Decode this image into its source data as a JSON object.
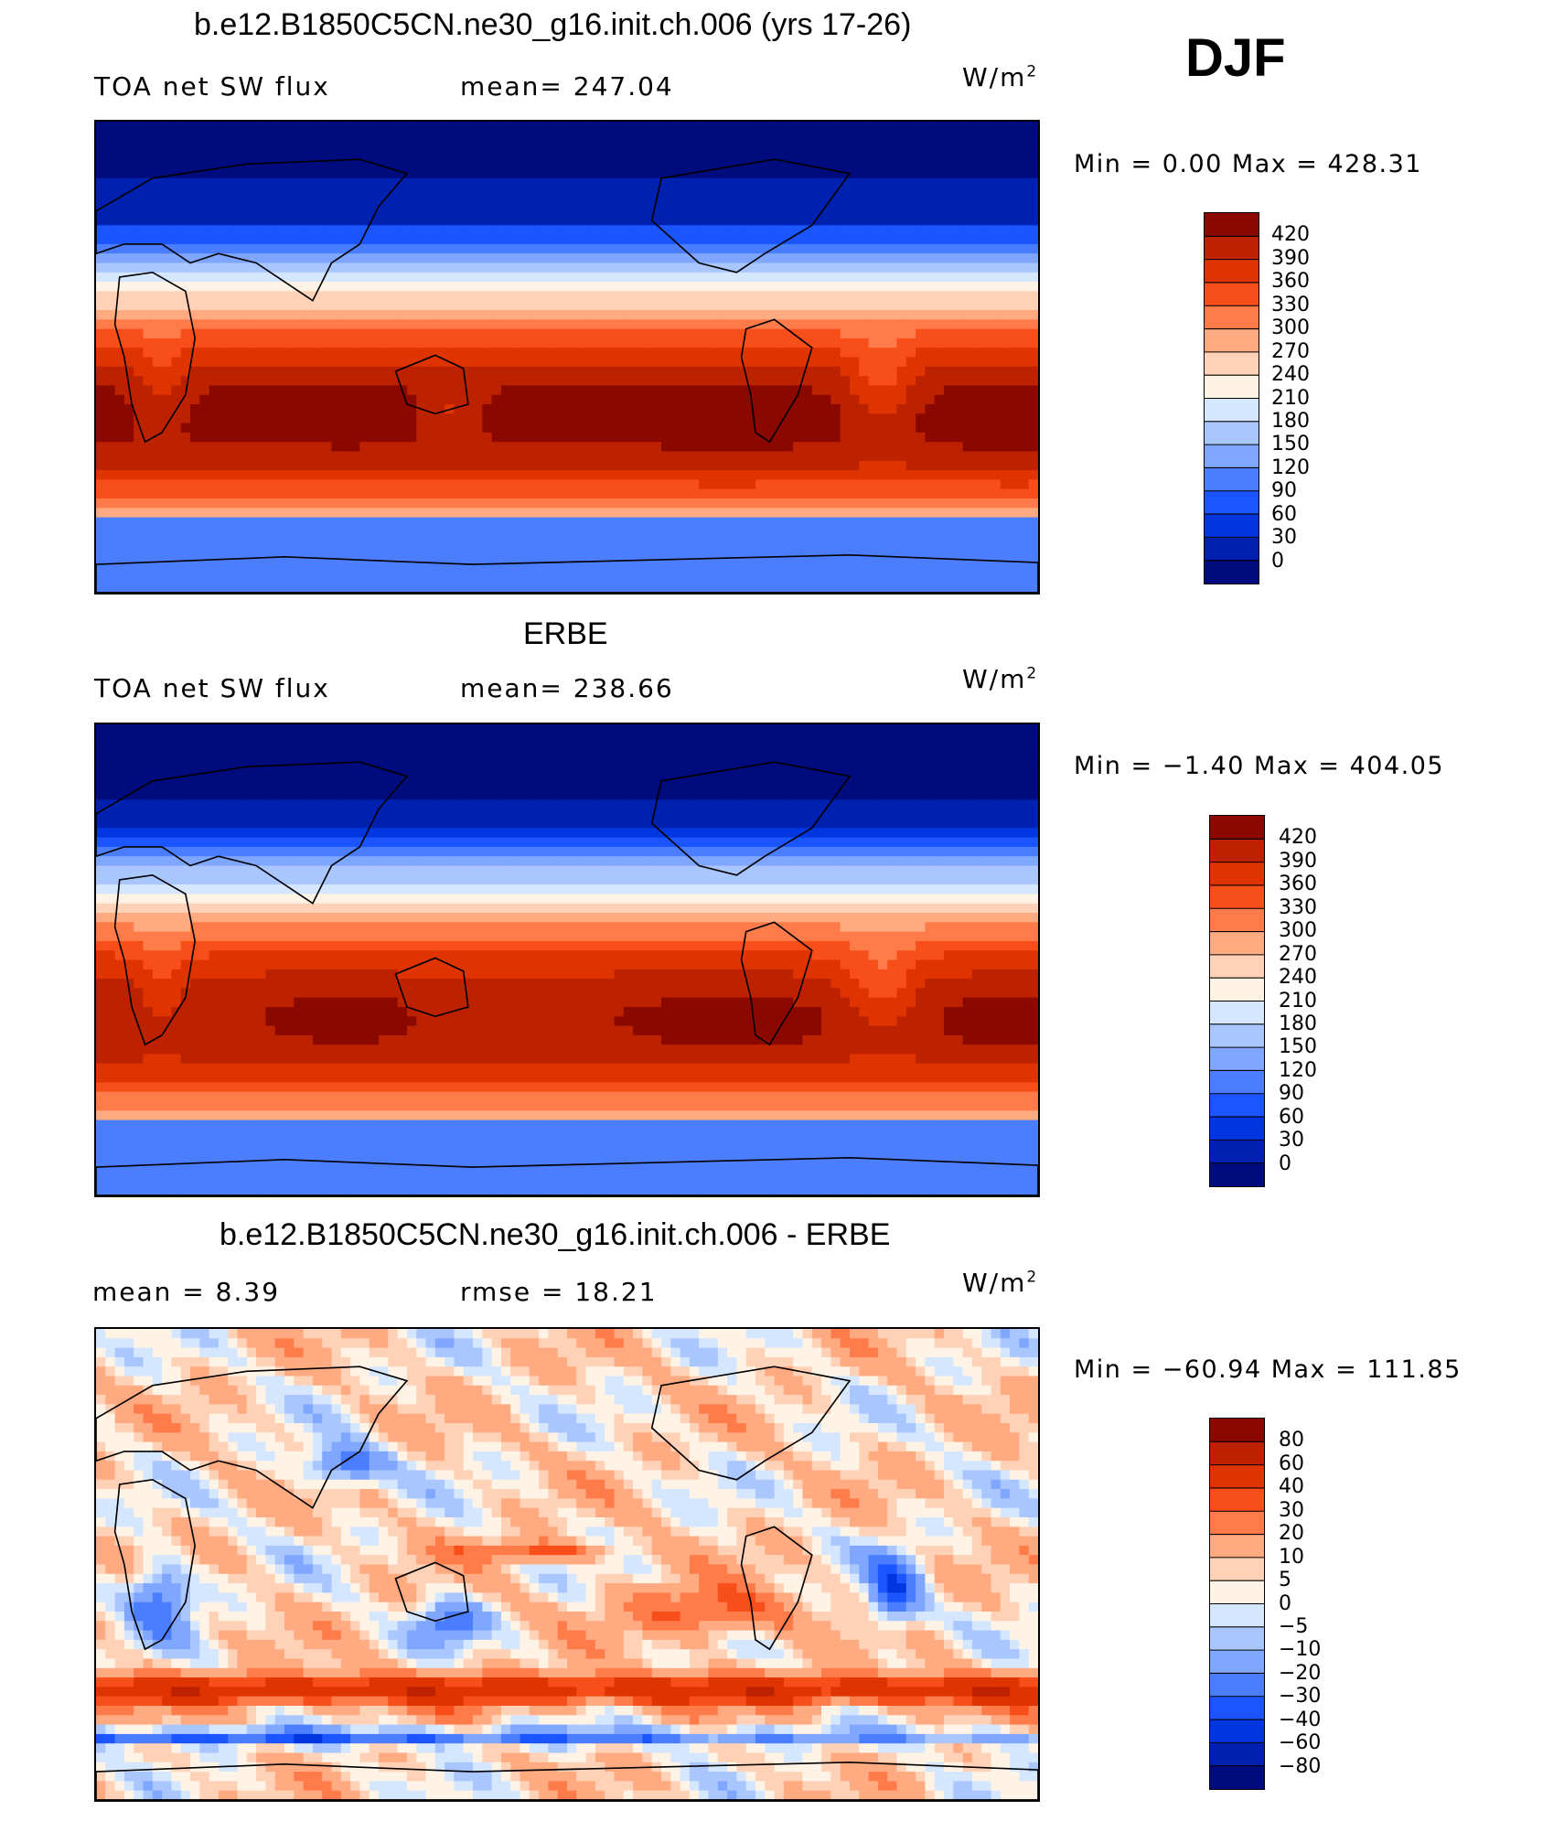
{
  "figure": {
    "season": "DJF"
  },
  "panels": [
    {
      "title": "b.e12.B1850C5CN.ne30_g16.init.ch.006 (yrs 17-26)",
      "left_label": "TOA net SW flux",
      "mid_label": "mean=  247.04",
      "units": "W/m",
      "units_exp": "2",
      "minmax": "Min  =    0.00  Max  =  428.31"
    },
    {
      "title": "ERBE",
      "left_label": "TOA net SW flux",
      "mid_label": "mean=  238.66",
      "units": "W/m",
      "units_exp": "2",
      "minmax": "Min  =  −1.40  Max  =  404.05"
    },
    {
      "title": "b.e12.B1850C5CN.ne30_g16.init.ch.006 - ERBE",
      "left_label": "mean  =    8.39",
      "mid_label": "rmse  =   18.21",
      "units": "W/m",
      "units_exp": "2",
      "minmax": "Min  = −60.94  Max  =  111.85"
    }
  ],
  "chart_data": [
    {
      "type": "heatmap",
      "title": "b.e12.B1850C5CN.ne30_g16.init.ch.006 (yrs 17-26)",
      "variable": "TOA net SW flux",
      "mean": 247.04,
      "min": 0.0,
      "max": 428.31,
      "units": "W/m2",
      "colorbar_levels": [
        0,
        30,
        60,
        90,
        120,
        150,
        180,
        210,
        240,
        270,
        300,
        330,
        360,
        390,
        420
      ],
      "colors": [
        "#000c7d",
        "#0020b0",
        "#0036e0",
        "#1a55ff",
        "#4a7dff",
        "#7fa7ff",
        "#aac6ff",
        "#d5e6ff",
        "#fff3e6",
        "#ffd2b8",
        "#ffaa80",
        "#ff7c4a",
        "#f84f1a",
        "#e03400",
        "#bd2200",
        "#8b0800"
      ]
    },
    {
      "type": "heatmap",
      "title": "ERBE",
      "variable": "TOA net SW flux",
      "mean": 238.66,
      "min": -1.4,
      "max": 404.05,
      "units": "W/m2",
      "colorbar_levels": [
        0,
        30,
        60,
        90,
        120,
        150,
        180,
        210,
        240,
        270,
        300,
        330,
        360,
        390,
        420
      ],
      "colors": [
        "#000c7d",
        "#0020b0",
        "#0036e0",
        "#1a55ff",
        "#4a7dff",
        "#7fa7ff",
        "#aac6ff",
        "#d5e6ff",
        "#fff3e6",
        "#ffd2b8",
        "#ffaa80",
        "#ff7c4a",
        "#f84f1a",
        "#e03400",
        "#bd2200",
        "#8b0800"
      ]
    },
    {
      "type": "heatmap",
      "title": "b.e12.B1850C5CN.ne30_g16.init.ch.006 - ERBE",
      "mean": 8.39,
      "rmse": 18.21,
      "min": -60.94,
      "max": 111.85,
      "units": "W/m2",
      "colorbar_levels": [
        -80,
        -60,
        -40,
        -30,
        -20,
        -10,
        -5,
        0,
        5,
        10,
        20,
        30,
        40,
        60,
        80
      ],
      "colors": [
        "#000c7d",
        "#0020b0",
        "#0036e0",
        "#1a55ff",
        "#4a7dff",
        "#7fa7ff",
        "#aac6ff",
        "#d5e6ff",
        "#fff3e6",
        "#ffd2b8",
        "#ffaa80",
        "#ff7c4a",
        "#f84f1a",
        "#e03400",
        "#bd2200",
        "#8b0800"
      ]
    }
  ]
}
